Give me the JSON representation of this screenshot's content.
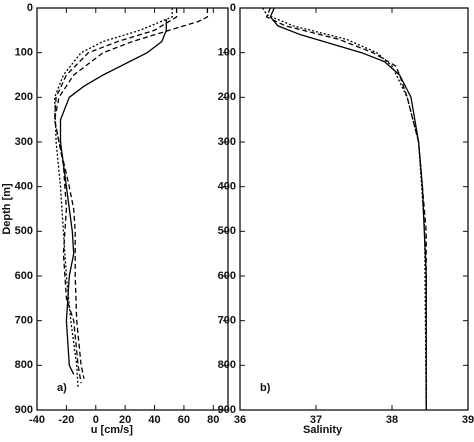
{
  "chart_data": [
    {
      "type": "line",
      "xlabel": "u [cm/s]",
      "ylabel": "Depth [m]",
      "panel_label": "a)",
      "xlim": [
        -40,
        90
      ],
      "xticks": [
        -40,
        -20,
        0,
        20,
        40,
        60,
        80
      ],
      "ylim": [
        0,
        900
      ],
      "yticks": [
        0,
        100,
        200,
        300,
        400,
        500,
        600,
        700,
        800,
        900
      ],
      "invert_y": true,
      "series": [
        {
          "color": "#000000",
          "dash": "solid",
          "x": [
            48,
            48,
            45,
            35,
            20,
            5,
            -8,
            -18,
            -24,
            -24,
            -20,
            -16,
            -15,
            -18,
            -20,
            -18,
            -15
          ],
          "y": [
            25,
            50,
            75,
            100,
            125,
            150,
            175,
            200,
            250,
            300,
            400,
            500,
            550,
            600,
            700,
            800,
            820
          ]
        },
        {
          "color": "#000000",
          "dash": "dashed",
          "x": [
            76,
            76,
            70,
            50,
            25,
            5,
            -15,
            -25,
            -28,
            -25,
            -18,
            -15,
            -14,
            -14,
            -13,
            -10,
            -8
          ],
          "y": [
            0,
            20,
            30,
            50,
            75,
            100,
            150,
            200,
            250,
            300,
            400,
            450,
            500,
            600,
            700,
            800,
            830
          ]
        },
        {
          "color": "#000000",
          "dash": "dashed",
          "x": [
            55,
            55,
            40,
            15,
            -5,
            -20,
            -27,
            -28,
            -22,
            -20,
            -22,
            -20,
            -15,
            -12,
            -10
          ],
          "y": [
            0,
            20,
            50,
            75,
            100,
            150,
            200,
            250,
            350,
            450,
            550,
            650,
            700,
            800,
            840
          ]
        },
        {
          "color": "#000000",
          "dash": "dotted",
          "x": [
            52,
            52,
            30,
            5,
            -10,
            -22,
            -28,
            -27,
            -24,
            -22,
            -20,
            -17,
            -13,
            -12
          ],
          "y": [
            0,
            20,
            50,
            75,
            100,
            150,
            200,
            300,
            400,
            500,
            600,
            700,
            800,
            850
          ]
        }
      ]
    },
    {
      "type": "line",
      "xlabel": "Salinity",
      "panel_label": "b)",
      "xlim": [
        36,
        39
      ],
      "xticks": [
        36,
        37,
        38,
        39
      ],
      "ylim": [
        0,
        900
      ],
      "yticks": [
        0,
        100,
        200,
        300,
        400,
        500,
        600,
        700,
        800,
        900
      ],
      "invert_y": true,
      "series": [
        {
          "color": "#000000",
          "dash": "solid",
          "x": [
            36.45,
            36.4,
            36.5,
            36.8,
            37.2,
            37.6,
            37.9,
            38.1,
            38.25,
            38.35,
            38.4,
            38.45,
            38.45
          ],
          "y": [
            0,
            20,
            40,
            60,
            80,
            100,
            120,
            150,
            200,
            300,
            400,
            600,
            900
          ]
        },
        {
          "color": "#000000",
          "dash": "dashed",
          "x": [
            36.4,
            36.35,
            36.6,
            37.3,
            37.75,
            38.05,
            38.1,
            38.2,
            38.35,
            38.45,
            38.45
          ],
          "y": [
            0,
            20,
            40,
            70,
            100,
            130,
            150,
            200,
            300,
            500,
            900
          ]
        },
        {
          "color": "#000000",
          "dash": "dotted",
          "x": [
            36.3,
            36.35,
            36.7,
            37.4,
            37.8,
            38.0,
            38.2,
            38.35,
            38.43,
            38.45
          ],
          "y": [
            0,
            15,
            40,
            70,
            100,
            130,
            200,
            300,
            500,
            900
          ]
        }
      ]
    }
  ]
}
